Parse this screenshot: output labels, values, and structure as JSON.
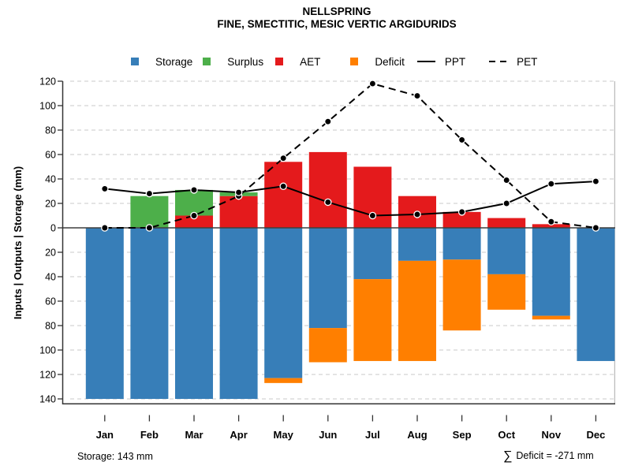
{
  "title": {
    "line1": "NELLSPRING",
    "line2": "FINE, SMECTITIC, MESIC VERTIC ARGIDURIDS"
  },
  "legend": [
    {
      "label": "Storage",
      "swatch": "square",
      "color": "#377EB8"
    },
    {
      "label": "Surplus",
      "swatch": "square",
      "color": "#4DAF4A"
    },
    {
      "label": "AET",
      "swatch": "square",
      "color": "#E41A1C"
    },
    {
      "label": "Deficit",
      "swatch": "square",
      "color": "#FF7F00"
    },
    {
      "label": "PPT",
      "swatch": "line-solid",
      "color": "#000000"
    },
    {
      "label": "PET",
      "swatch": "line-dashed",
      "color": "#000000"
    }
  ],
  "footer": {
    "storage_note": "Storage: 143 mm",
    "sigma": "∑",
    "deficit_note": "Deficit = -271 mm"
  },
  "chart_data": {
    "type": "bar",
    "subtype": "stacked monthly water-balance bars with PPT/PET line overlay",
    "title": "NELLSPRING — FINE, SMECTITIC, MESIC VERTIC ARGIDURIDS",
    "categories": [
      "Jan",
      "Feb",
      "Mar",
      "Apr",
      "May",
      "Jun",
      "Jul",
      "Aug",
      "Sep",
      "Oct",
      "Nov",
      "Dec"
    ],
    "xlabel": "",
    "ylabel": "Inputs | Outputs | Storage   (mm)",
    "ylim": [
      -144,
      125
    ],
    "grid": "dashed horizontal gridlines every 20 mm",
    "legend_position": "top, horizontal row",
    "y_ticks": [
      {
        "value": 120,
        "label": "120"
      },
      {
        "value": 100,
        "label": "100"
      },
      {
        "value": 80,
        "label": "80"
      },
      {
        "value": 60,
        "label": "60"
      },
      {
        "value": 40,
        "label": "40"
      },
      {
        "value": 20,
        "label": "20"
      },
      {
        "value": 0,
        "label": "0"
      },
      {
        "value": -20,
        "label": "20"
      },
      {
        "value": -40,
        "label": "40"
      },
      {
        "value": -60,
        "label": "60"
      },
      {
        "value": -80,
        "label": "80"
      },
      {
        "value": -100,
        "label": "100"
      },
      {
        "value": -120,
        "label": "120"
      },
      {
        "value": -140,
        "label": "140"
      }
    ],
    "series": [
      {
        "name": "AET",
        "type": "bar",
        "direction": "up",
        "color": "#E41A1C",
        "values": [
          0,
          0,
          10,
          26,
          54,
          62,
          50,
          26,
          13,
          8,
          3,
          0
        ]
      },
      {
        "name": "Surplus",
        "type": "bar",
        "direction": "up",
        "stacked_on": "AET",
        "color": "#4DAF4A",
        "values": [
          0,
          26,
          21,
          3,
          0,
          0,
          0,
          0,
          0,
          0,
          0,
          0
        ]
      },
      {
        "name": "Storage",
        "type": "bar",
        "direction": "down",
        "color": "#377EB8",
        "values": [
          -140,
          -140,
          -140,
          -140,
          -123,
          -82,
          -42,
          -27,
          -26,
          -38,
          -72,
          -109
        ]
      },
      {
        "name": "Deficit",
        "type": "bar",
        "direction": "down",
        "stacked_on": "Storage",
        "color": "#FF7F00",
        "values": [
          0,
          0,
          0,
          0,
          -4,
          -28,
          -67,
          -82,
          -58,
          -29,
          -3,
          0
        ]
      }
    ],
    "lines": [
      {
        "name": "PPT",
        "style": "solid",
        "color": "#000000",
        "marker": "filled-circle",
        "values": [
          32,
          28,
          31,
          29,
          34,
          21,
          10,
          11,
          13,
          20,
          36,
          38
        ]
      },
      {
        "name": "PET",
        "style": "dashed",
        "color": "#000000",
        "marker": "filled-circle",
        "values": [
          0,
          0,
          10,
          26,
          57,
          87,
          118,
          108,
          72,
          39,
          5,
          0
        ]
      }
    ],
    "annotations": {
      "storage_capacity": "Storage: 143 mm",
      "deficit_sum": "∑ Deficit = -271 mm"
    }
  }
}
